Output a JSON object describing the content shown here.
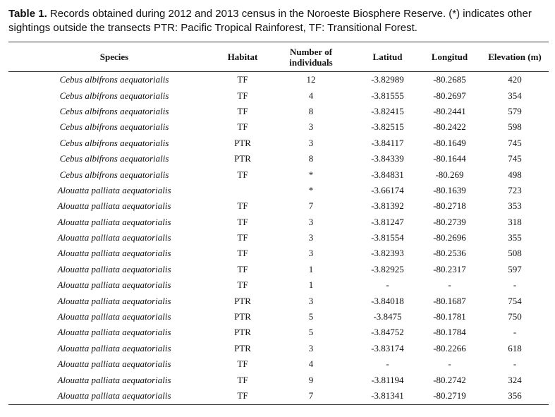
{
  "caption": {
    "label": "Table 1.",
    "text": " Records obtained during 2012 and 2013 census in the Noroeste Biosphere Reserve. (*) indicates other sightings outside the transects PTR: Pacific Tropical Rainforest, TF: Transitional Forest."
  },
  "columns": {
    "species": "Species",
    "habitat": "Habitat",
    "number": "Number of\nindividuals",
    "latitude": "Latitud",
    "longitude": "Longitud",
    "elevation": "Elevation (m)"
  },
  "rows": [
    [
      "Cebus albifrons aequatorialis",
      "TF",
      "12",
      "-3.82989",
      "-80.2685",
      "420"
    ],
    [
      "Cebus albifrons aequatorialis",
      "TF",
      "4",
      "-3.81555",
      "-80.2697",
      "354"
    ],
    [
      "Cebus albifrons aequatorialis",
      "TF",
      "8",
      "-3.82415",
      "-80.2441",
      "579"
    ],
    [
      "Cebus albifrons aequatorialis",
      "TF",
      "3",
      "-3.82515",
      "-80.2422",
      "598"
    ],
    [
      "Cebus albifrons aequatorialis",
      "PTR",
      "3",
      "-3.84117",
      "-80.1649",
      "745"
    ],
    [
      "Cebus albifrons aequatorialis",
      "PTR",
      "8",
      "-3.84339",
      "-80.1644",
      "745"
    ],
    [
      "Cebus albifrons aequatorialis",
      "TF",
      "*",
      "-3.84831",
      "-80.269",
      "498"
    ],
    [
      "Alouatta palliata aequatorialis",
      "",
      "*",
      "-3.66174",
      "-80.1639",
      "723"
    ],
    [
      "Alouatta palliata aequatorialis",
      "TF",
      "7",
      "-3.81392",
      "-80.2718",
      "353"
    ],
    [
      "Alouatta palliata aequatorialis",
      "TF",
      "3",
      "-3.81247",
      "-80.2739",
      "318"
    ],
    [
      "Alouatta palliata aequatorialis",
      "TF",
      "3",
      "-3.81554",
      "-80.2696",
      "355"
    ],
    [
      "Alouatta palliata aequatorialis",
      "TF",
      "3",
      "-3.82393",
      "-80.2536",
      "508"
    ],
    [
      "Alouatta palliata aequatorialis",
      "TF",
      "1",
      "-3.82925",
      "-80.2317",
      "597"
    ],
    [
      "Alouatta palliata aequatorialis",
      "TF",
      "1",
      "-",
      "-",
      "-"
    ],
    [
      "Alouatta palliata aequatorialis",
      "PTR",
      "3",
      "-3.84018",
      "-80.1687",
      "754"
    ],
    [
      "Alouatta palliata aequatorialis",
      "PTR",
      "5",
      "-3.8475",
      "-80.1781",
      "750"
    ],
    [
      "Alouatta palliata aequatorialis",
      "PTR",
      "5",
      "-3.84752",
      "-80.1784",
      "-"
    ],
    [
      "Alouatta palliata aequatorialis",
      "PTR",
      "3",
      "-3.83174",
      "-80.2266",
      "618"
    ],
    [
      "Alouatta palliata aequatorialis",
      "TF",
      "4",
      "-",
      "-",
      "-"
    ],
    [
      "Alouatta palliata aequatorialis",
      "TF",
      "9",
      "-3.81194",
      "-80.2742",
      "324"
    ],
    [
      "Alouatta palliata aequatorialis",
      "TF",
      "7",
      "-3.81341",
      "-80.2719",
      "356"
    ]
  ]
}
